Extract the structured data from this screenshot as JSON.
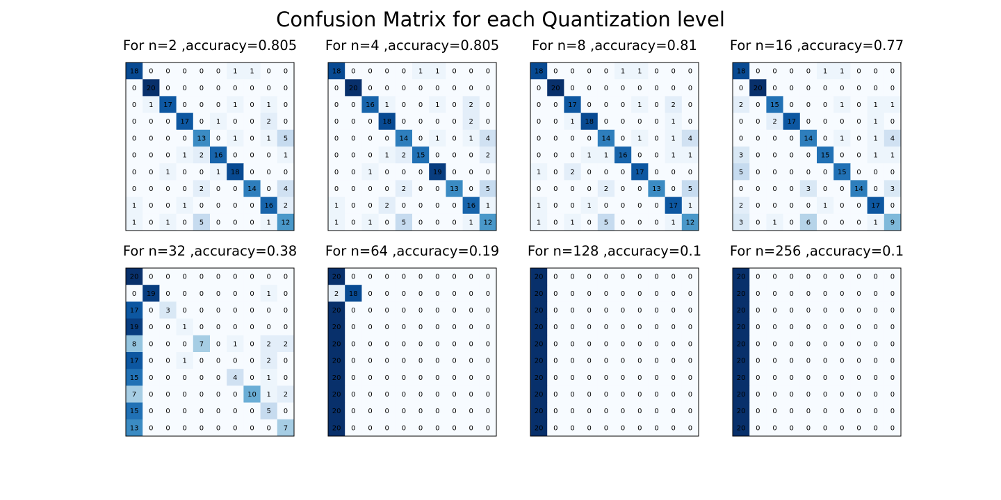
{
  "title": "Confusion Matrix for each Quantization level",
  "chart_data": [
    {
      "type": "heatmap",
      "title": "For n=2 ,accuracy=0.805",
      "vmax": 20,
      "colormap": "Blues",
      "matrix": [
        [
          18,
          0,
          0,
          0,
          0,
          0,
          1,
          1,
          0,
          0
        ],
        [
          0,
          20,
          0,
          0,
          0,
          0,
          0,
          0,
          0,
          0
        ],
        [
          0,
          1,
          17,
          0,
          0,
          0,
          1,
          0,
          1,
          0
        ],
        [
          0,
          0,
          0,
          17,
          0,
          1,
          0,
          0,
          2,
          0
        ],
        [
          0,
          0,
          0,
          0,
          13,
          0,
          1,
          0,
          1,
          5
        ],
        [
          0,
          0,
          0,
          1,
          2,
          16,
          0,
          0,
          0,
          1
        ],
        [
          0,
          0,
          1,
          0,
          0,
          1,
          18,
          0,
          0,
          0
        ],
        [
          0,
          0,
          0,
          0,
          2,
          0,
          0,
          14,
          0,
          4
        ],
        [
          1,
          0,
          0,
          1,
          0,
          0,
          0,
          0,
          16,
          2
        ],
        [
          1,
          0,
          1,
          0,
          5,
          0,
          0,
          0,
          1,
          12
        ]
      ]
    },
    {
      "type": "heatmap",
      "title": "For n=4 ,accuracy=0.805",
      "vmax": 20,
      "colormap": "Blues",
      "matrix": [
        [
          18,
          0,
          0,
          0,
          0,
          1,
          1,
          0,
          0,
          0
        ],
        [
          0,
          20,
          0,
          0,
          0,
          0,
          0,
          0,
          0,
          0
        ],
        [
          0,
          0,
          16,
          1,
          0,
          0,
          1,
          0,
          2,
          0
        ],
        [
          0,
          0,
          0,
          18,
          0,
          0,
          0,
          0,
          2,
          0
        ],
        [
          0,
          0,
          0,
          0,
          14,
          0,
          1,
          0,
          1,
          4
        ],
        [
          0,
          0,
          0,
          1,
          2,
          15,
          0,
          0,
          0,
          2
        ],
        [
          0,
          0,
          1,
          0,
          0,
          0,
          19,
          0,
          0,
          0
        ],
        [
          0,
          0,
          0,
          0,
          2,
          0,
          0,
          13,
          0,
          5
        ],
        [
          1,
          0,
          0,
          2,
          0,
          0,
          0,
          0,
          16,
          1
        ],
        [
          1,
          0,
          1,
          0,
          5,
          0,
          0,
          0,
          1,
          12
        ]
      ]
    },
    {
      "type": "heatmap",
      "title": "For n=8 ,accuracy=0.81",
      "vmax": 20,
      "colormap": "Blues",
      "matrix": [
        [
          18,
          0,
          0,
          0,
          0,
          1,
          1,
          0,
          0,
          0
        ],
        [
          0,
          20,
          0,
          0,
          0,
          0,
          0,
          0,
          0,
          0
        ],
        [
          0,
          0,
          17,
          0,
          0,
          0,
          1,
          0,
          2,
          0
        ],
        [
          0,
          0,
          1,
          18,
          0,
          0,
          0,
          0,
          1,
          0
        ],
        [
          0,
          0,
          0,
          0,
          14,
          0,
          1,
          0,
          1,
          4
        ],
        [
          0,
          0,
          0,
          1,
          1,
          16,
          0,
          0,
          1,
          1
        ],
        [
          1,
          0,
          2,
          0,
          0,
          0,
          17,
          0,
          0,
          0
        ],
        [
          0,
          0,
          0,
          0,
          2,
          0,
          0,
          13,
          0,
          5
        ],
        [
          1,
          0,
          0,
          1,
          0,
          0,
          0,
          0,
          17,
          1
        ],
        [
          1,
          0,
          1,
          0,
          5,
          0,
          0,
          0,
          1,
          12
        ]
      ]
    },
    {
      "type": "heatmap",
      "title": "For n=16 ,accuracy=0.77",
      "vmax": 20,
      "colormap": "Blues",
      "matrix": [
        [
          18,
          0,
          0,
          0,
          0,
          1,
          1,
          0,
          0,
          0
        ],
        [
          0,
          20,
          0,
          0,
          0,
          0,
          0,
          0,
          0,
          0
        ],
        [
          2,
          0,
          15,
          0,
          0,
          0,
          1,
          0,
          1,
          1
        ],
        [
          0,
          0,
          2,
          17,
          0,
          0,
          0,
          0,
          1,
          0
        ],
        [
          0,
          0,
          0,
          0,
          14,
          0,
          1,
          0,
          1,
          4
        ],
        [
          3,
          0,
          0,
          0,
          0,
          15,
          0,
          0,
          1,
          1
        ],
        [
          5,
          0,
          0,
          0,
          0,
          0,
          15,
          0,
          0,
          0
        ],
        [
          0,
          0,
          0,
          0,
          3,
          0,
          0,
          14,
          0,
          3
        ],
        [
          2,
          0,
          0,
          0,
          0,
          1,
          0,
          0,
          17,
          0
        ],
        [
          3,
          0,
          1,
          0,
          6,
          0,
          0,
          0,
          1,
          9
        ]
      ]
    },
    {
      "type": "heatmap",
      "title": "For n=32 ,accuracy=0.38",
      "vmax": 20,
      "colormap": "Blues",
      "matrix": [
        [
          20,
          0,
          0,
          0,
          0,
          0,
          0,
          0,
          0,
          0
        ],
        [
          0,
          19,
          0,
          0,
          0,
          0,
          0,
          0,
          1,
          0
        ],
        [
          17,
          0,
          3,
          0,
          0,
          0,
          0,
          0,
          0,
          0
        ],
        [
          19,
          0,
          0,
          1,
          0,
          0,
          0,
          0,
          0,
          0
        ],
        [
          8,
          0,
          0,
          0,
          7,
          0,
          1,
          0,
          2,
          2
        ],
        [
          17,
          0,
          0,
          1,
          0,
          0,
          0,
          0,
          2,
          0
        ],
        [
          15,
          0,
          0,
          0,
          0,
          0,
          4,
          0,
          1,
          0
        ],
        [
          7,
          0,
          0,
          0,
          0,
          0,
          0,
          10,
          1,
          2
        ],
        [
          15,
          0,
          0,
          0,
          0,
          0,
          0,
          0,
          5,
          0
        ],
        [
          13,
          0,
          0,
          0,
          0,
          0,
          0,
          0,
          0,
          7
        ]
      ]
    },
    {
      "type": "heatmap",
      "title": "For n=64 ,accuracy=0.19",
      "vmax": 20,
      "colormap": "Blues",
      "matrix": [
        [
          20,
          0,
          0,
          0,
          0,
          0,
          0,
          0,
          0,
          0
        ],
        [
          2,
          18,
          0,
          0,
          0,
          0,
          0,
          0,
          0,
          0
        ],
        [
          20,
          0,
          0,
          0,
          0,
          0,
          0,
          0,
          0,
          0
        ],
        [
          20,
          0,
          0,
          0,
          0,
          0,
          0,
          0,
          0,
          0
        ],
        [
          20,
          0,
          0,
          0,
          0,
          0,
          0,
          0,
          0,
          0
        ],
        [
          20,
          0,
          0,
          0,
          0,
          0,
          0,
          0,
          0,
          0
        ],
        [
          20,
          0,
          0,
          0,
          0,
          0,
          0,
          0,
          0,
          0
        ],
        [
          20,
          0,
          0,
          0,
          0,
          0,
          0,
          0,
          0,
          0
        ],
        [
          20,
          0,
          0,
          0,
          0,
          0,
          0,
          0,
          0,
          0
        ],
        [
          20,
          0,
          0,
          0,
          0,
          0,
          0,
          0,
          0,
          0
        ]
      ]
    },
    {
      "type": "heatmap",
      "title": "For n=128 ,accuracy=0.1",
      "vmax": 20,
      "colormap": "Blues",
      "matrix": [
        [
          20,
          0,
          0,
          0,
          0,
          0,
          0,
          0,
          0,
          0
        ],
        [
          20,
          0,
          0,
          0,
          0,
          0,
          0,
          0,
          0,
          0
        ],
        [
          20,
          0,
          0,
          0,
          0,
          0,
          0,
          0,
          0,
          0
        ],
        [
          20,
          0,
          0,
          0,
          0,
          0,
          0,
          0,
          0,
          0
        ],
        [
          20,
          0,
          0,
          0,
          0,
          0,
          0,
          0,
          0,
          0
        ],
        [
          20,
          0,
          0,
          0,
          0,
          0,
          0,
          0,
          0,
          0
        ],
        [
          20,
          0,
          0,
          0,
          0,
          0,
          0,
          0,
          0,
          0
        ],
        [
          20,
          0,
          0,
          0,
          0,
          0,
          0,
          0,
          0,
          0
        ],
        [
          20,
          0,
          0,
          0,
          0,
          0,
          0,
          0,
          0,
          0
        ],
        [
          20,
          0,
          0,
          0,
          0,
          0,
          0,
          0,
          0,
          0
        ]
      ]
    },
    {
      "type": "heatmap",
      "title": "For n=256 ,accuracy=0.1",
      "vmax": 20,
      "colormap": "Blues",
      "matrix": [
        [
          20,
          0,
          0,
          0,
          0,
          0,
          0,
          0,
          0,
          0
        ],
        [
          20,
          0,
          0,
          0,
          0,
          0,
          0,
          0,
          0,
          0
        ],
        [
          20,
          0,
          0,
          0,
          0,
          0,
          0,
          0,
          0,
          0
        ],
        [
          20,
          0,
          0,
          0,
          0,
          0,
          0,
          0,
          0,
          0
        ],
        [
          20,
          0,
          0,
          0,
          0,
          0,
          0,
          0,
          0,
          0
        ],
        [
          20,
          0,
          0,
          0,
          0,
          0,
          0,
          0,
          0,
          0
        ],
        [
          20,
          0,
          0,
          0,
          0,
          0,
          0,
          0,
          0,
          0
        ],
        [
          20,
          0,
          0,
          0,
          0,
          0,
          0,
          0,
          0,
          0
        ],
        [
          20,
          0,
          0,
          0,
          0,
          0,
          0,
          0,
          0,
          0
        ],
        [
          20,
          0,
          0,
          0,
          0,
          0,
          0,
          0,
          0,
          0
        ]
      ]
    }
  ]
}
